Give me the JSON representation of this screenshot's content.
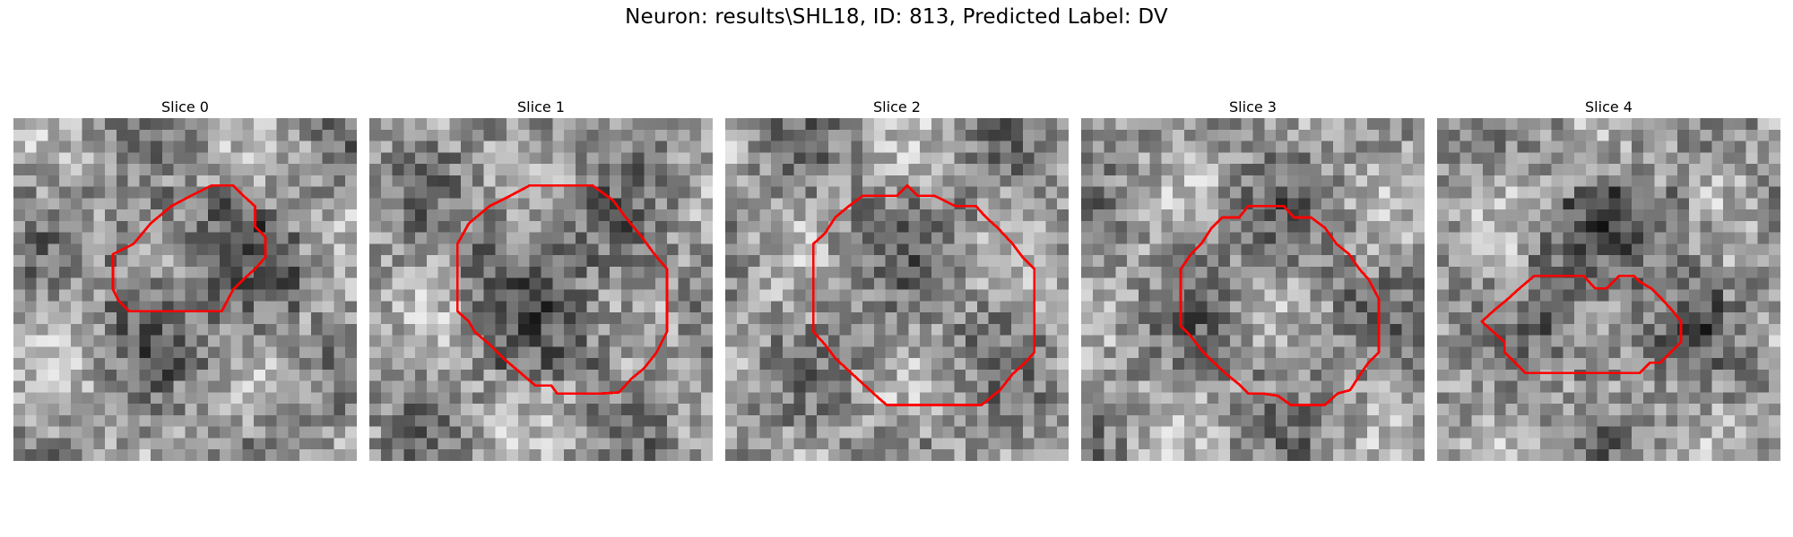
{
  "figure": {
    "title": "Neuron: results\\SHL18, ID: 813, Predicted Label: DV",
    "contour_color": "#ff0000"
  },
  "panels": [
    {
      "title": "Slice 0",
      "seed": 11,
      "dark_blob": true
    },
    {
      "title": "Slice 1",
      "seed": 27,
      "dark_blob": true
    },
    {
      "title": "Slice 2",
      "seed": 43,
      "dark_blob": false
    },
    {
      "title": "Slice 3",
      "seed": 59,
      "dark_blob": false
    },
    {
      "title": "Slice 4",
      "seed": 71,
      "dark_blob": true
    }
  ]
}
